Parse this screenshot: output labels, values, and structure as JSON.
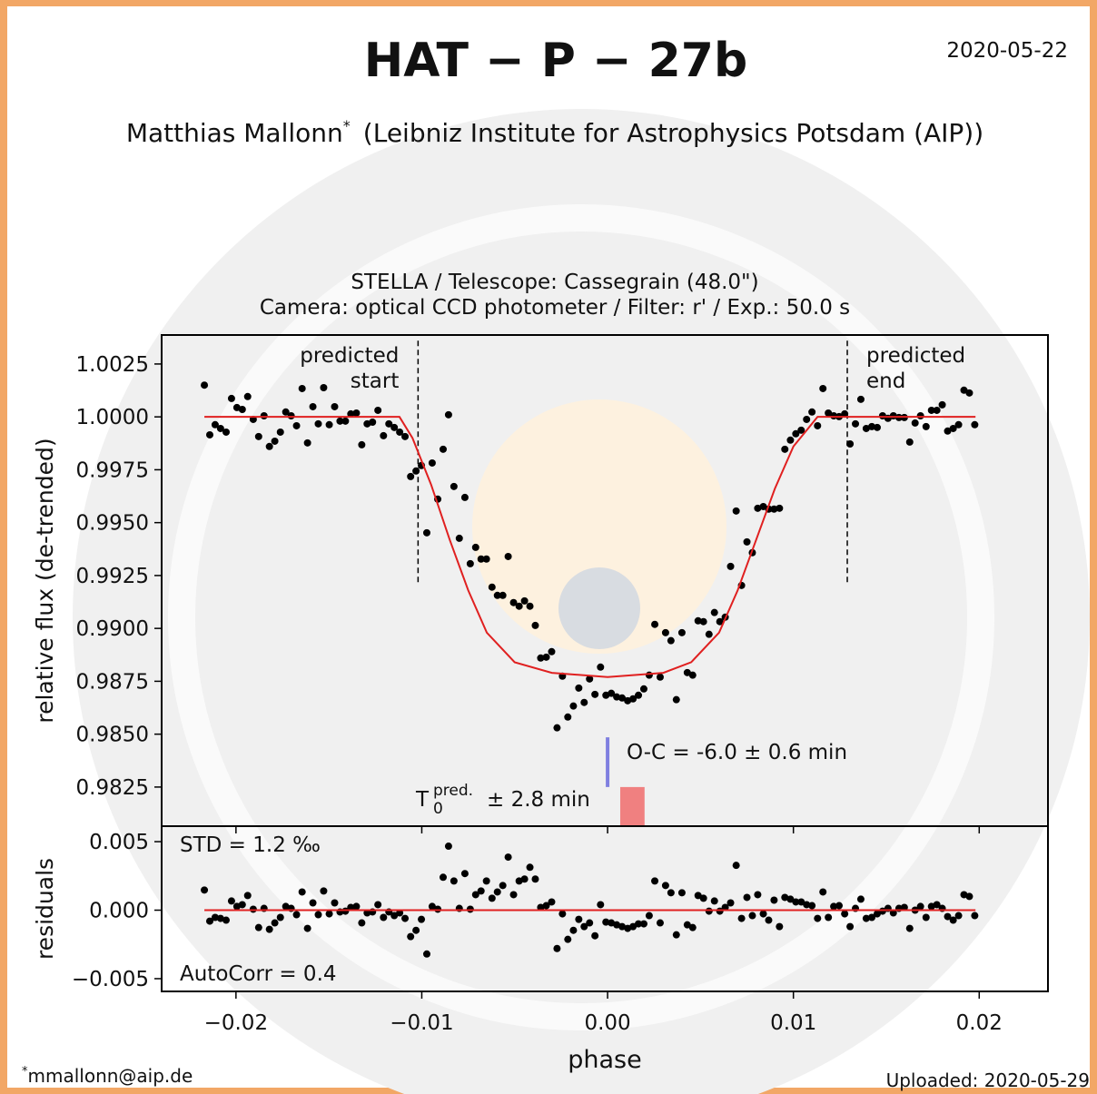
{
  "header": {
    "title": "HAT − P − 27b",
    "date": "2020-05-22",
    "author": "Matthias Mallonn",
    "author_mark": "*",
    "affiliation": "(Leibniz Institute for Astrophysics Potsdam (AIP))"
  },
  "footer": {
    "footnote_mark": "*",
    "email": "mmallonn@aip.de",
    "uploaded": "Uploaded: 2020-05-29"
  },
  "chart_data": [
    {
      "type": "scatter",
      "title": [
        "STELLA / Telescope: Cassegrain (48.0\")",
        "Camera: optical CCD photometer / Filter: r' / Exp.: 50.0 s"
      ],
      "ylabel": "relative flux (de-trended)",
      "xlim": [
        -0.024,
        0.0237
      ],
      "ylim": [
        0.98065,
        1.00387
      ],
      "yticks": [
        1.0025,
        {
          "value": 1.0,
          "label": "1.0000"
        },
        0.9975,
        {
          "value": 0.995,
          "label": "0.9950"
        },
        0.9925,
        {
          "value": 0.99,
          "label": "0.9900"
        },
        0.9875,
        {
          "value": 0.985,
          "label": "0.9850"
        },
        0.9825
      ],
      "series": [
        {
          "type": "scatter",
          "color": "#000000",
          "x": [
            -0.0217,
            -0.02141,
            -0.02112,
            -0.02083,
            -0.02053,
            -0.02024,
            -0.01995,
            -0.01966,
            -0.01937,
            -0.01907,
            -0.01878,
            -0.01849,
            -0.0182,
            -0.01791,
            -0.01761,
            -0.01732,
            -0.01703,
            -0.01674,
            -0.01644,
            -0.01615,
            -0.01586,
            -0.01557,
            -0.01528,
            -0.01498,
            -0.01469,
            -0.0144,
            -0.01411,
            -0.01382,
            -0.01352,
            -0.01323,
            -0.01294,
            -0.01265,
            -0.01236,
            -0.01206,
            -0.01177,
            -0.01148,
            -0.01119,
            -0.0109,
            -0.0106,
            -0.01031,
            -0.01002,
            -0.00973,
            -0.00944,
            -0.00914,
            -0.00885,
            -0.00856,
            -0.00827,
            -0.00798,
            -0.00768,
            -0.00739,
            -0.0071,
            -0.00681,
            -0.00652,
            -0.00622,
            -0.00593,
            -0.00564,
            -0.00535,
            -0.00506,
            -0.00476,
            -0.00447,
            -0.00418,
            -0.00389,
            -0.0036,
            -0.0033,
            -0.00301,
            -0.00272,
            -0.00243,
            -0.00214,
            -0.00184,
            -0.00155,
            -0.00126,
            -0.00097,
            -0.00068,
            -0.00038,
            -9e-05,
            0.0002,
            0.00049,
            0.00078,
            0.00108,
            0.00137,
            0.00166,
            0.00195,
            0.00224,
            0.00254,
            0.00283,
            0.00312,
            0.00341,
            0.0037,
            0.004,
            0.00429,
            0.00458,
            0.00487,
            0.00516,
            0.00546,
            0.00575,
            0.00604,
            0.00633,
            0.00662,
            0.00692,
            0.00721,
            0.0075,
            0.00779,
            0.00808,
            0.00838,
            0.00867,
            0.00896,
            0.00925,
            0.00954,
            0.00984,
            0.01013,
            0.01042,
            0.01071,
            0.011,
            0.0113,
            0.01159,
            0.01188,
            0.01217,
            0.01246,
            0.01276,
            0.01305,
            0.01334,
            0.01363,
            0.01392,
            0.01422,
            0.01451,
            0.0148,
            0.01509,
            0.01538,
            0.01568,
            0.01597,
            0.01626,
            0.01655,
            0.01684,
            0.01714,
            0.01743,
            0.01772,
            0.01801,
            0.0183,
            0.0186,
            0.01889,
            0.01918,
            0.01947,
            0.01976
          ],
          "values": [
            1.0015,
            0.99915,
            0.99963,
            0.99945,
            0.99928,
            1.00087,
            1.00044,
            1.00035,
            1.00096,
            0.99988,
            0.99907,
            1.00005,
            0.9986,
            0.99885,
            0.99928,
            1.00023,
            1.00005,
            0.99958,
            1.00134,
            0.99877,
            1.00048,
            0.99967,
            1.00138,
            0.99963,
            1.00048,
            0.9998,
            0.9998,
            1.00014,
            1.00018,
            0.99868,
            0.99967,
            0.99975,
            1.00031,
            0.99911,
            0.99967,
            0.9995,
            0.99928,
            0.99907,
            0.99718,
            0.99744,
            0.9977,
            0.99452,
            0.99782,
            0.99611,
            0.99847,
            1.0001,
            0.99671,
            0.99426,
            0.99619,
            0.99306,
            0.99383,
            0.99328,
            0.99328,
            0.99195,
            0.99156,
            0.99156,
            0.9934,
            0.99122,
            0.99105,
            0.9913,
            0.99105,
            0.99014,
            0.9886,
            0.98864,
            0.9889,
            0.9853,
            0.98774,
            0.98581,
            0.98633,
            0.98718,
            0.9865,
            0.98761,
            0.98688,
            0.98817,
            0.98684,
            0.98693,
            0.98676,
            0.98671,
            0.98658,
            0.98667,
            0.98684,
            0.98714,
            0.98779,
            0.99019,
            0.9877,
            0.9898,
            0.98942,
            0.98663,
            0.9898,
            0.98791,
            0.98779,
            0.99036,
            0.99032,
            0.98972,
            0.99075,
            0.99032,
            0.99053,
            0.99293,
            0.99555,
            0.99203,
            0.99409,
            0.99358,
            0.99568,
            0.99576,
            0.99564,
            0.99564,
            0.99568,
            0.99847,
            0.9989,
            0.9992,
            0.99937,
            0.99988,
            1.00023,
            0.99958,
            1.00134,
            1.00018,
            1.00005,
            1.00001,
            1.00014,
            0.99872,
            0.99967,
            1.00083,
            0.99945,
            0.99954,
            0.9995,
            1.00005,
            0.99993,
            1.00005,
            0.99997,
            0.99997,
            0.99881,
            0.99971,
            1.00005,
            0.99954,
            1.00031,
            1.00031,
            1.00057,
            0.99933,
            0.99945,
            0.99963,
            1.00126,
            1.00113,
            0.99963
          ]
        },
        {
          "type": "line",
          "color": "#e02020",
          "x": [
            -0.0217,
            -0.0112,
            -0.0105,
            -0.0095,
            -0.0085,
            -0.0075,
            -0.0065,
            -0.005,
            -0.003,
            0,
            0.003,
            0.0045,
            0.006,
            0.007,
            0.008,
            0.009,
            0.01,
            0.0113,
            0.0198
          ],
          "values": [
            1,
            1,
            0.999,
            0.9968,
            0.9942,
            0.9918,
            0.9898,
            0.9884,
            0.9879,
            0.9877,
            0.9879,
            0.9884,
            0.9898,
            0.9918,
            0.9942,
            0.9966,
            0.9986,
            1,
            1
          ]
        }
      ],
      "markers": [
        {
          "label": [
            "predicted",
            "start"
          ],
          "x": -0.0102,
          "y_range": [
            0.9921,
            1.0036
          ]
        },
        {
          "label": [
            "predicted",
            "end"
          ],
          "x": 0.0129,
          "y_range": [
            0.9921,
            1.0036
          ]
        }
      ],
      "o_c": {
        "label": "O-C = -6.0 ± 0.6 min",
        "x": 0,
        "y_range": [
          0.9825,
          0.98485
        ],
        "color": "#8080e0"
      },
      "t0_pred": {
        "base": "T",
        "sub": "0",
        "sup": "pred.",
        "text": "± 2.8 min",
        "x_range": [
          0.00068,
          0.00199
        ],
        "y_range": [
          0.98065,
          0.9825
        ],
        "color": "#f08080"
      }
    },
    {
      "type": "scatter",
      "ylabel": "residuals",
      "xlabel": "phase",
      "xlim": [
        -0.024,
        0.0237
      ],
      "ylim": [
        -0.00593,
        0.00613
      ],
      "yticks": [
        0.005,
        {
          "value": 0,
          "label": "0.000"
        },
        {
          "value": -0.005,
          "label": "−0.005"
        }
      ],
      "xticks": [
        {
          "value": -0.02,
          "label": "−0.02"
        },
        {
          "value": -0.01,
          "label": "−0.01"
        },
        {
          "value": 0,
          "label": "0.00"
        },
        0.01,
        0.02
      ],
      "std": "STD = 1.2 ‰",
      "autocorr": "AutoCorr = 0.4",
      "series": [
        {
          "type": "scatter",
          "color": "#000000",
          "x": [
            -0.0217,
            -0.02141,
            -0.02112,
            -0.02083,
            -0.02053,
            -0.02024,
            -0.01995,
            -0.01966,
            -0.01937,
            -0.01907,
            -0.01878,
            -0.01849,
            -0.0182,
            -0.01791,
            -0.01761,
            -0.01732,
            -0.01703,
            -0.01674,
            -0.01644,
            -0.01615,
            -0.01586,
            -0.01557,
            -0.01528,
            -0.01498,
            -0.01469,
            -0.0144,
            -0.01411,
            -0.01382,
            -0.01352,
            -0.01323,
            -0.01294,
            -0.01265,
            -0.01236,
            -0.01206,
            -0.01177,
            -0.01148,
            -0.01119,
            -0.0109,
            -0.0106,
            -0.01031,
            -0.01002,
            -0.00973,
            -0.00944,
            -0.00914,
            -0.00885,
            -0.00856,
            -0.00827,
            -0.00798,
            -0.00768,
            -0.00739,
            -0.0071,
            -0.00681,
            -0.00652,
            -0.00622,
            -0.00593,
            -0.00564,
            -0.00535,
            -0.00506,
            -0.00476,
            -0.00447,
            -0.00418,
            -0.00389,
            -0.0036,
            -0.0033,
            -0.00301,
            -0.00272,
            -0.00243,
            -0.00214,
            -0.00184,
            -0.00155,
            -0.00126,
            -0.00097,
            -0.00068,
            -0.00038,
            -9e-05,
            0.0002,
            0.00049,
            0.00078,
            0.00108,
            0.00137,
            0.00166,
            0.00195,
            0.00224,
            0.00254,
            0.00283,
            0.00312,
            0.00341,
            0.0037,
            0.004,
            0.00429,
            0.00458,
            0.00487,
            0.00516,
            0.00546,
            0.00575,
            0.00604,
            0.00633,
            0.00662,
            0.00692,
            0.00721,
            0.0075,
            0.00779,
            0.00808,
            0.00838,
            0.00867,
            0.00896,
            0.00925,
            0.00954,
            0.00984,
            0.01013,
            0.01042,
            0.01071,
            0.011,
            0.0113,
            0.01159,
            0.01188,
            0.01217,
            0.01246,
            0.01276,
            0.01305,
            0.01334,
            0.01363,
            0.01392,
            0.01422,
            0.01451,
            0.0148,
            0.01509,
            0.01538,
            0.01568,
            0.01597,
            0.01626,
            0.01655,
            0.01684,
            0.01714,
            0.01743,
            0.01772,
            0.01801,
            0.0183,
            0.0186,
            0.01889,
            0.01918,
            0.01947,
            0.01976
          ],
          "values": [
            0.00147,
            -0.0008,
            -0.00053,
            -0.0006,
            -0.00073,
            0.00067,
            0.00027,
            0.0004,
            0.00107,
            7e-05,
            -0.00127,
            0.00013,
            -0.0014,
            -0.00093,
            -0.00053,
            0.00027,
            0.00013,
            -0.00033,
            0.00133,
            -0.00133,
            0.00053,
            -0.00033,
            0.0014,
            -0.00027,
            0.00053,
            -0.00013,
            -7e-05,
            0.0002,
            0.00027,
            -0.00093,
            -0.0002,
            -0.00013,
            0.0004,
            -0.00053,
            -0.00013,
            -0.0004,
            -0.0002,
            -0.0006,
            -0.00193,
            -0.00147,
            -0.00067,
            -0.0032,
            0.00027,
            7e-05,
            0.0024,
            0.00467,
            0.00213,
            0.00013,
            0.00267,
            7e-05,
            0.00113,
            0.0014,
            0.00213,
            0.00087,
            0.00133,
            0.0018,
            0.00387,
            0.00113,
            0.00213,
            0.00227,
            0.00313,
            0.00227,
            0.0002,
            0.00033,
            0.0006,
            -0.0028,
            -0.00027,
            -0.00213,
            -0.00147,
            -0.00067,
            -0.0012,
            -0.00093,
            -0.00187,
            0.0004,
            -0.00087,
            -0.00093,
            -0.00107,
            -0.0012,
            -0.00133,
            -0.0012,
            -0.001,
            -0.001,
            -0.0004,
            0.00213,
            -0.00093,
            0.0018,
            0.00127,
            -0.0018,
            0.00127,
            -0.00107,
            -0.00127,
            0.00107,
            0.00087,
            -7e-05,
            0.00067,
            -7e-05,
            0.0002,
            0.00053,
            0.00327,
            -0.0006,
            0.00093,
            -0.0004,
            0.00113,
            -0.00027,
            -0.00073,
            0.00073,
            -0.0012,
            0.00093,
            0.0008,
            0.0006,
            0.0006,
            0.0004,
            0.00033,
            -0.0006,
            0.00133,
            -0.00053,
            0.00027,
            0.00033,
            -0.00027,
            -0.0012,
            0.00013,
            0.0008,
            -0.0006,
            -0.00053,
            -0.00027,
            -7e-05,
            0.00013,
            -0.0002,
            0.00013,
            0.0002,
            -0.00133,
            0,
            0.00027,
            -0.00053,
            0.00027,
            0.0004,
            0.00013,
            -0.00047,
            -0.00073,
            -0.0004,
            0.00113,
            0.001,
            -0.0004
          ]
        },
        {
          "type": "line",
          "color": "#e02020",
          "x": [
            -0.0217,
            0.0198
          ],
          "values": [
            0,
            0
          ]
        }
      ]
    }
  ]
}
